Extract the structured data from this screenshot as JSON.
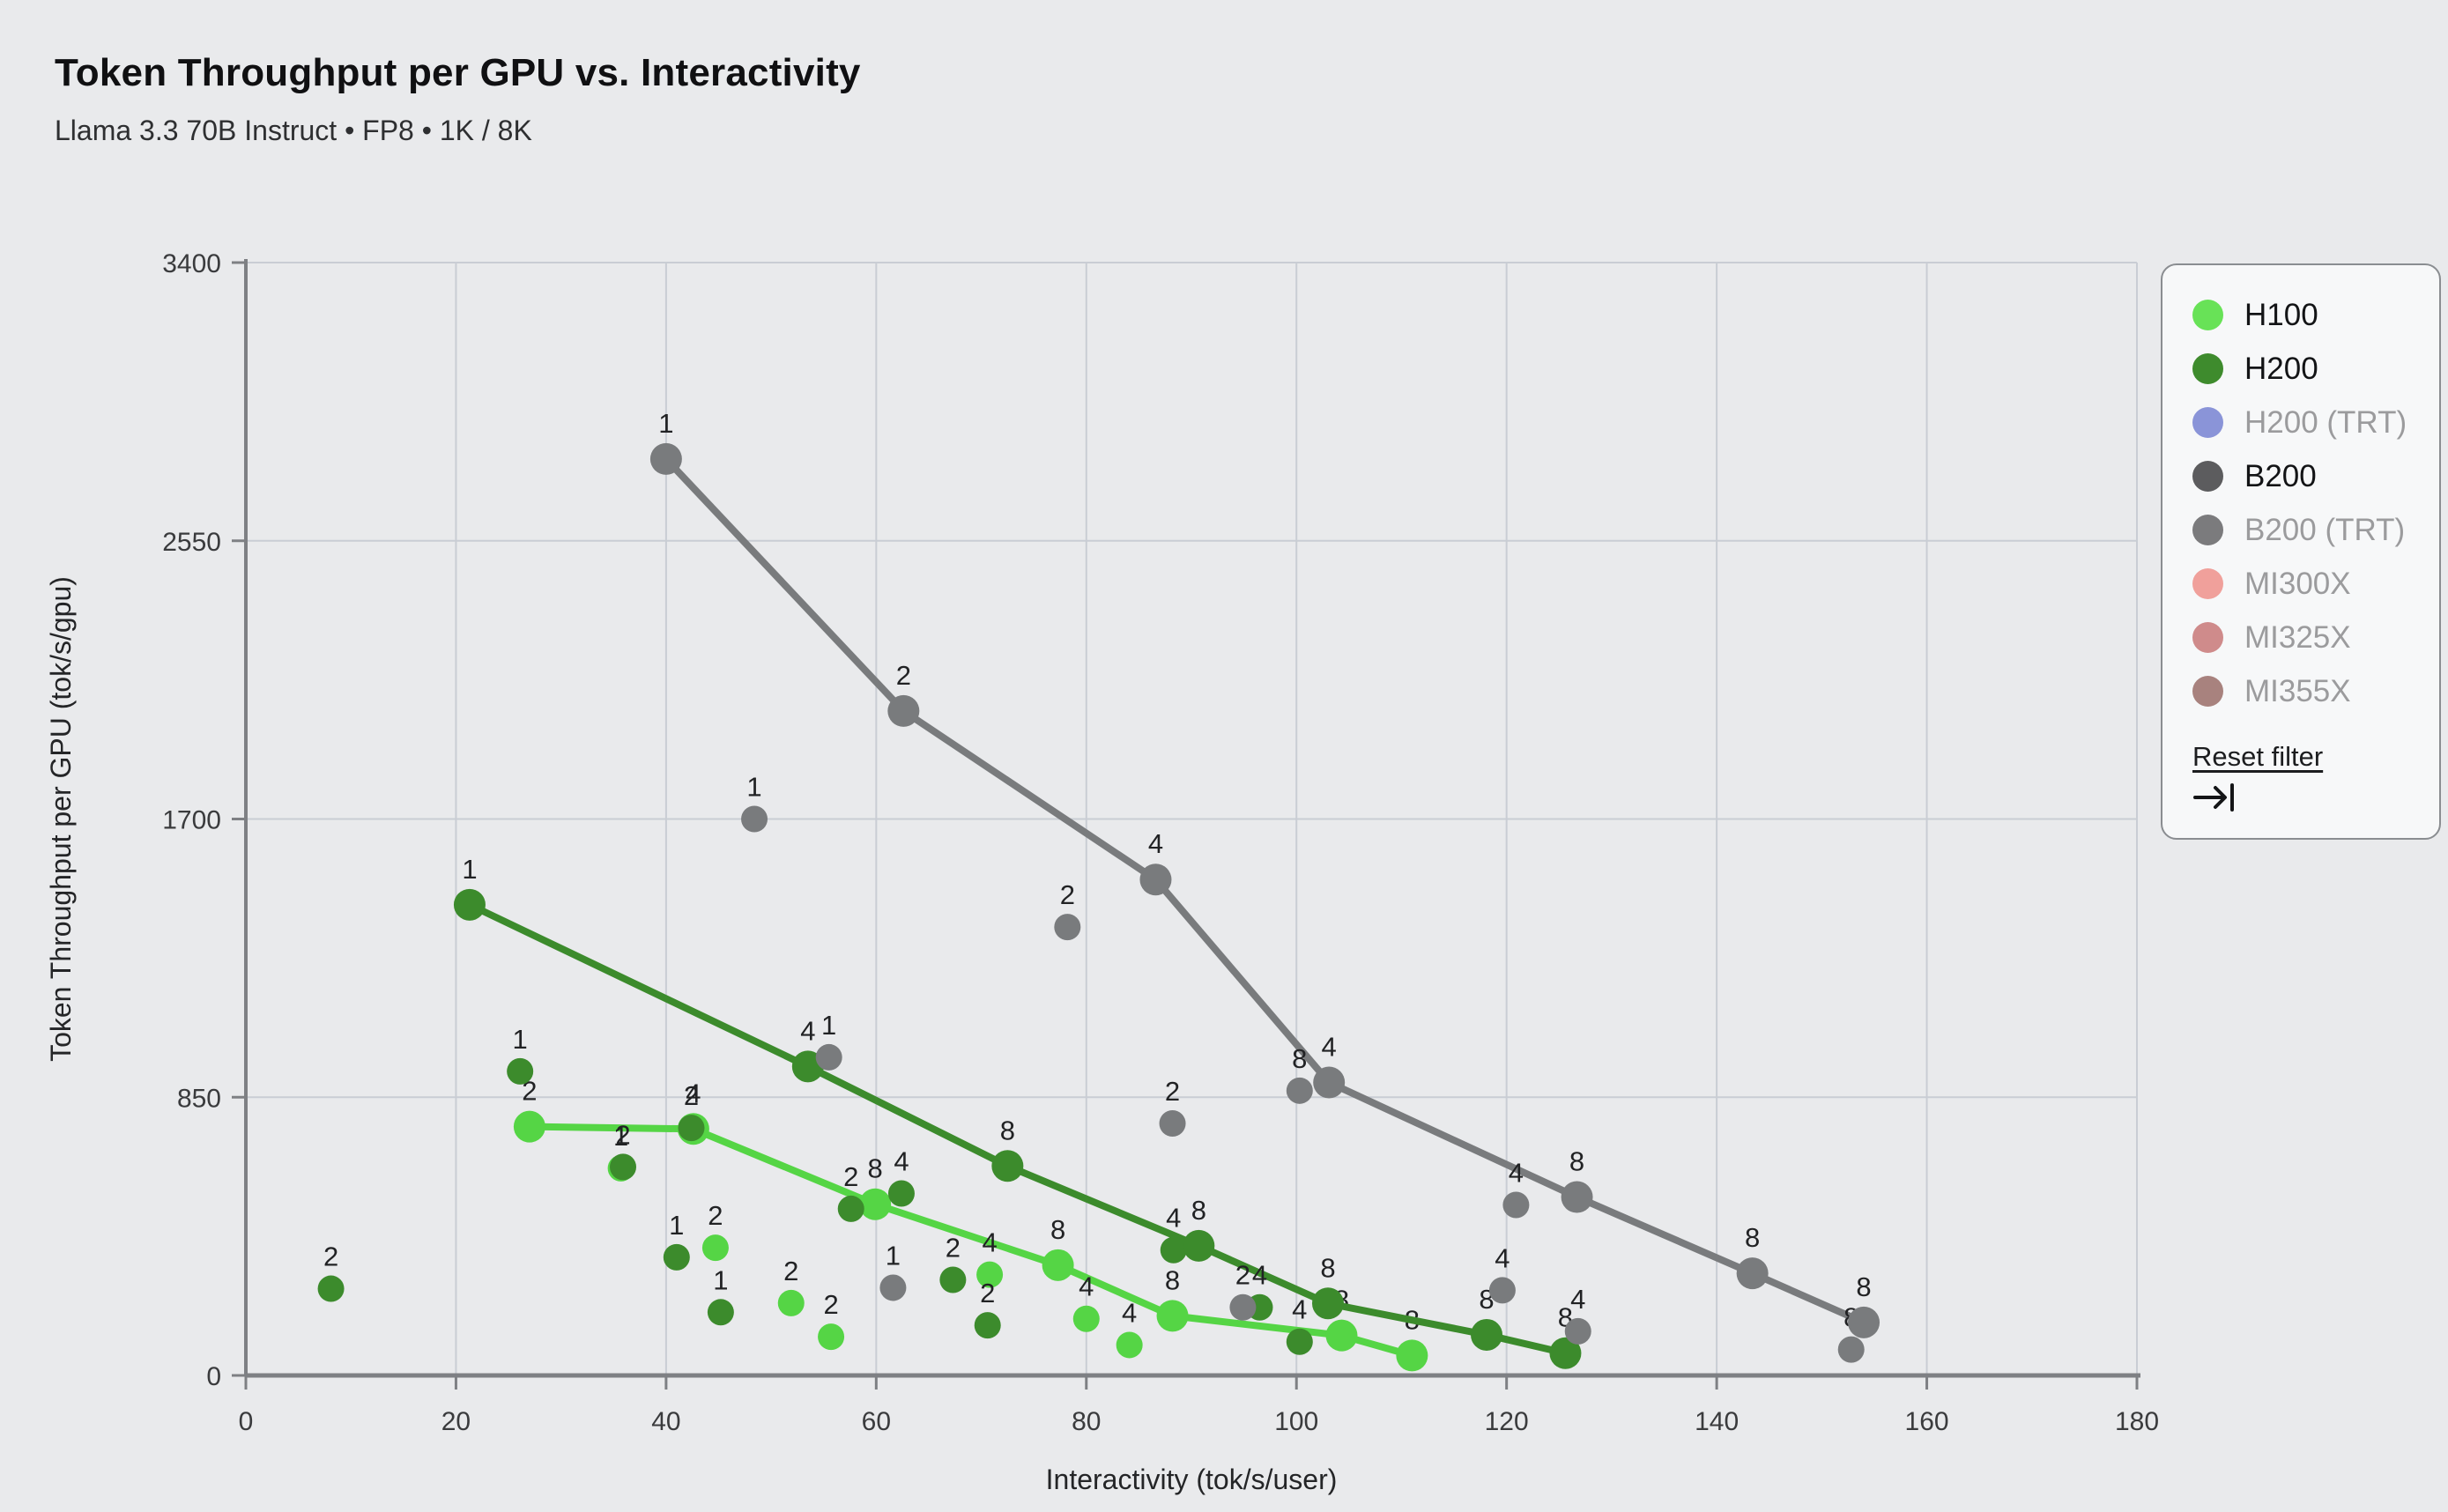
{
  "header": {
    "title": "Token Throughput per GPU vs. Interactivity",
    "subtitle": "Llama 3.3 70B Instruct • FP8 • 1K / 8K"
  },
  "legend": {
    "reset_label": "Reset filter",
    "reset_icon": "tab-arrow-icon"
  },
  "chart_data": {
    "type": "scatter",
    "title": "Token Throughput per GPU vs. Interactivity",
    "subtitle": "Llama 3.3 70B Instruct • FP8 • 1K / 8K",
    "xlabel": "Interactivity (tok/s/user)",
    "ylabel": "Token Throughput per GPU (tok/s/gpu)",
    "x_axis": {
      "min": 0,
      "max": 180,
      "ticks": [
        0,
        20,
        40,
        60,
        80,
        100,
        120,
        140,
        160,
        180
      ]
    },
    "y_axis": {
      "min": 0,
      "max": 3400,
      "ticks": [
        0,
        850,
        1700,
        2550,
        3400
      ]
    },
    "grid": true,
    "point_label_meaning": "GPU count / tensor parallelism",
    "colors": {
      "background": "#e9eaec",
      "gridline": "#c9cdd4",
      "axis": "#7e8084",
      "tick_text": "#3a3b3d",
      "point_label": "#212224"
    },
    "series": [
      {
        "name": "H100",
        "active": true,
        "color": "#55d545",
        "legend_color": "#68e257",
        "line": [
          [
            27,
            760,
            "2"
          ],
          [
            42.6,
            753,
            "4"
          ],
          [
            59.9,
            523,
            "8"
          ],
          [
            77.3,
            337,
            "8"
          ],
          [
            88.2,
            182,
            "8"
          ],
          [
            104.3,
            122,
            "8"
          ],
          [
            111,
            61,
            "8"
          ]
        ],
        "scatter": [
          [
            35.7,
            633,
            "1"
          ],
          [
            44.7,
            390,
            "2"
          ],
          [
            51.9,
            221,
            "2"
          ],
          [
            55.7,
            118,
            "2"
          ],
          [
            70.8,
            308,
            "4"
          ],
          [
            80,
            173,
            "4"
          ],
          [
            84.1,
            93,
            "4"
          ]
        ]
      },
      {
        "name": "H200",
        "active": true,
        "color": "#3c8b2c",
        "legend_color": "#3e8b2d",
        "line": [
          [
            21.3,
            1438,
            "1"
          ],
          [
            53.5,
            944,
            "4"
          ],
          [
            72.5,
            640,
            "8"
          ],
          [
            90.7,
            396,
            "8"
          ],
          [
            103,
            220,
            "8"
          ],
          [
            118.1,
            124,
            "8"
          ],
          [
            125.6,
            68,
            "8"
          ]
        ],
        "scatter": [
          [
            8.1,
            265,
            "2"
          ],
          [
            26.1,
            929,
            "1"
          ],
          [
            35.9,
            637,
            "2"
          ],
          [
            41,
            361,
            "1"
          ],
          [
            42.4,
            756,
            "2"
          ],
          [
            45.2,
            193,
            "1"
          ],
          [
            57.6,
            509,
            "2"
          ],
          [
            62.4,
            556,
            "4"
          ],
          [
            67.3,
            292,
            "2"
          ],
          [
            70.6,
            153,
            "2"
          ],
          [
            88.3,
            383,
            "4"
          ],
          [
            96.5,
            208,
            "4"
          ],
          [
            100.3,
            103,
            "4"
          ]
        ]
      },
      {
        "name": "H200 (TRT)",
        "active": false,
        "color": "#8a94d8",
        "legend_color": "#8a94d8",
        "line": [],
        "scatter": []
      },
      {
        "name": "B200",
        "active": true,
        "color": "#797b7d",
        "legend_color": "#5c5c5e",
        "line": [
          [
            40,
            2800,
            "1"
          ],
          [
            62.6,
            2030,
            "2"
          ],
          [
            86.6,
            1515,
            "4"
          ],
          [
            103.1,
            895,
            "4"
          ],
          [
            126.7,
            545,
            "8"
          ],
          [
            143.4,
            312,
            "8"
          ],
          [
            154,
            162,
            "8"
          ]
        ],
        "scatter": [
          [
            48.4,
            1700,
            "1"
          ],
          [
            55.5,
            972,
            "1"
          ],
          [
            61.6,
            268,
            "1"
          ],
          [
            78.2,
            1370,
            "2"
          ],
          [
            88.2,
            770,
            "2"
          ],
          [
            94.9,
            208,
            "2"
          ],
          [
            100.3,
            870,
            "8"
          ],
          [
            119.6,
            260,
            "4"
          ],
          [
            120.9,
            521,
            "4"
          ],
          [
            126.8,
            135,
            "4"
          ],
          [
            152.8,
            79,
            "8"
          ]
        ]
      },
      {
        "name": "B200 (TRT)",
        "active": false,
        "color": "#7b7b7d",
        "legend_color": "#7b7b7d",
        "line": [],
        "scatter": []
      },
      {
        "name": "MI300X",
        "active": false,
        "color": "#f0a09b",
        "legend_color": "#f0a09b",
        "line": [],
        "scatter": []
      },
      {
        "name": "MI325X",
        "active": false,
        "color": "#cf8b8b",
        "legend_color": "#cf8b8b",
        "line": [],
        "scatter": []
      },
      {
        "name": "MI355X",
        "active": false,
        "color": "#a8827e",
        "legend_color": "#a8827e",
        "line": [],
        "scatter": []
      }
    ]
  }
}
